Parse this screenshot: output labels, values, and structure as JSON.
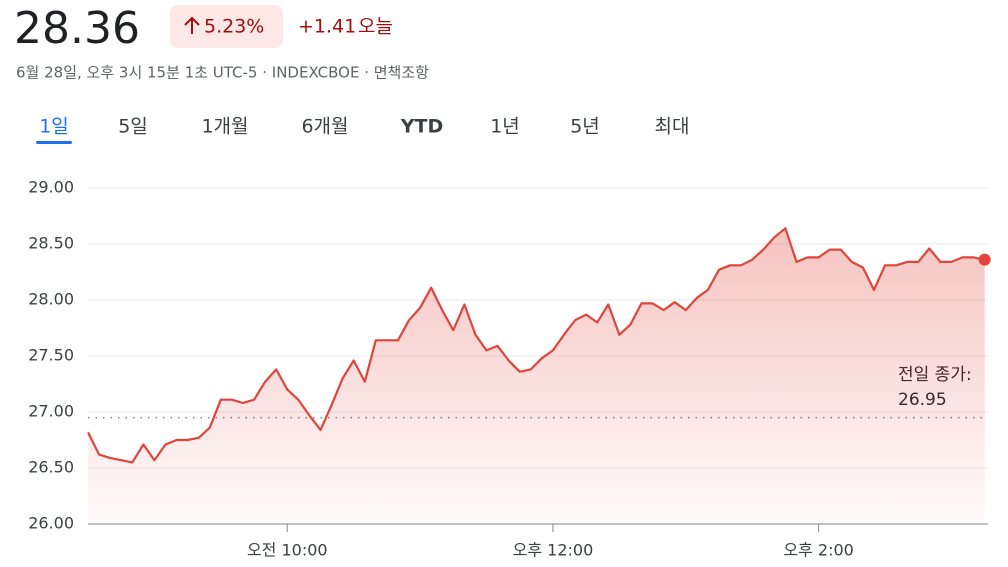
{
  "header": {
    "price": "28.36",
    "change_percent": "5.23%",
    "change": "+1.41",
    "period": "오늘",
    "subtitle": "6월 28일, 오후 3시 15분 1초 UTC-5 · INDEXCBOE · 면책조항"
  },
  "tabs": [
    "1일",
    "5일",
    "1개월",
    "6개월",
    "YTD",
    "1년",
    "5년",
    "최대"
  ],
  "chart_data": {
    "type": "line",
    "x": [
      510,
      515,
      520,
      525,
      530,
      535,
      540,
      545,
      550,
      555,
      560,
      565,
      570,
      575,
      580,
      585,
      590,
      595,
      600,
      605,
      610,
      615,
      620,
      625,
      630,
      635,
      640,
      645,
      650,
      655,
      660,
      665,
      670,
      675,
      680,
      685,
      690,
      695,
      700,
      705,
      710,
      715,
      720,
      725,
      730,
      735,
      740,
      745,
      750,
      755,
      760,
      765,
      770,
      775,
      780,
      785,
      790,
      795,
      800,
      805,
      810,
      815,
      820,
      825,
      830,
      835,
      840,
      845,
      850,
      855,
      860,
      865,
      870,
      875,
      880,
      885,
      890,
      895,
      900,
      905,
      910,
      915
    ],
    "series": [
      {
        "color": "#e0443a",
        "values": [
          26.82,
          26.62,
          26.59,
          26.57,
          26.55,
          26.71,
          26.57,
          26.71,
          26.75,
          26.75,
          26.77,
          26.86,
          27.11,
          27.11,
          27.08,
          27.11,
          27.27,
          27.38,
          27.2,
          27.11,
          26.97,
          26.84,
          27.06,
          27.3,
          27.46,
          27.27,
          27.64,
          27.64,
          27.64,
          27.82,
          27.93,
          28.11,
          27.91,
          27.73,
          27.96,
          27.69,
          27.55,
          27.59,
          27.46,
          27.36,
          27.38,
          27.48,
          27.55,
          27.69,
          27.82,
          27.87,
          27.8,
          27.96,
          27.69,
          27.78,
          27.97,
          27.97,
          27.91,
          27.98,
          27.91,
          28.02,
          28.09,
          28.27,
          28.31,
          28.31,
          28.36,
          28.45,
          28.56,
          28.64,
          28.34,
          28.38,
          28.38,
          28.45,
          28.45,
          28.34,
          28.29,
          28.09,
          28.31,
          28.31,
          28.34,
          28.34,
          28.46,
          28.34,
          28.34,
          28.38,
          28.38,
          28.36
        ]
      }
    ],
    "xlim": [
      510,
      916.5
    ],
    "xticks": [
      {
        "value": 600,
        "label": "오전 10:00"
      },
      {
        "value": 720,
        "label": "오후 12:00"
      },
      {
        "value": 840,
        "label": "오후 2:00"
      }
    ],
    "ylim": [
      26,
      29
    ],
    "yticks": [
      {
        "value": 26,
        "label": "26.00"
      },
      {
        "value": 26.5,
        "label": "26.50"
      },
      {
        "value": 27,
        "label": "27.00"
      },
      {
        "value": 27.5,
        "label": "27.50"
      },
      {
        "value": 28,
        "label": "28.00"
      },
      {
        "value": 28.5,
        "label": "28.50"
      },
      {
        "value": 29,
        "label": "29.00"
      }
    ],
    "grid": true,
    "reference": {
      "value": 26.95,
      "label": "전일 종가:",
      "value_label": "26.95"
    }
  }
}
